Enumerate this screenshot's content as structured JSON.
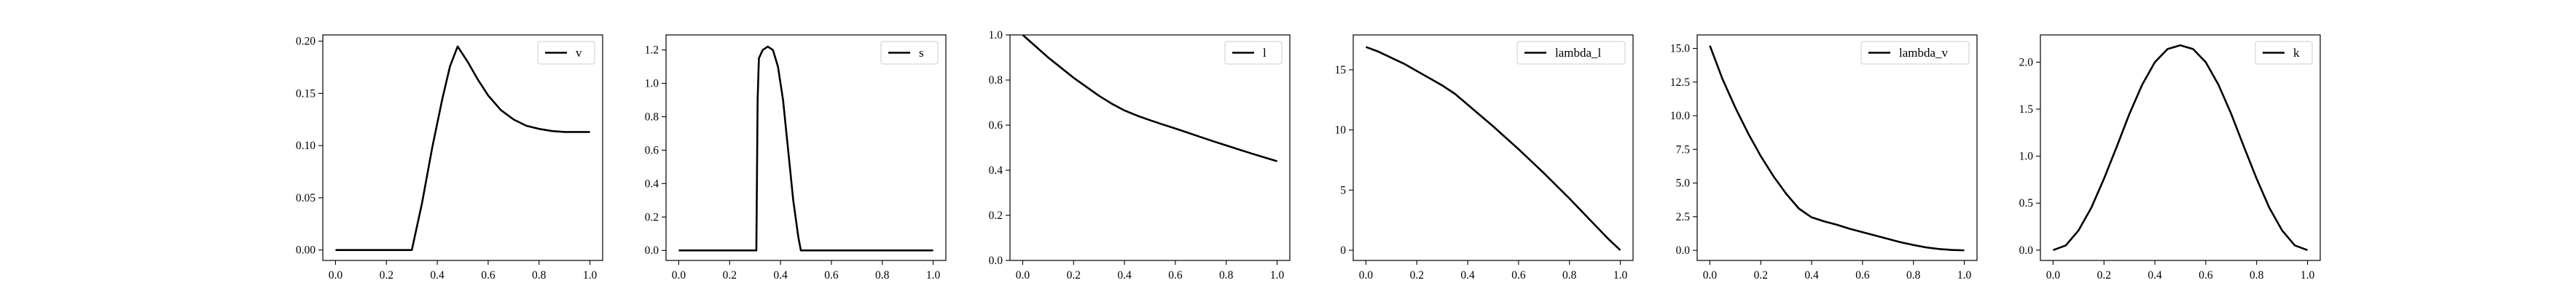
{
  "chart_data": [
    {
      "type": "line",
      "xlim": [
        -0.05,
        1.05
      ],
      "ylim": [
        -0.01,
        0.206
      ],
      "xticks": [
        "0.0",
        "0.2",
        "0.4",
        "0.6",
        "0.8",
        "1.0"
      ],
      "yticks": [
        "0.00",
        "0.05",
        "0.10",
        "0.15",
        "0.20"
      ],
      "grid": false,
      "legend": {
        "position": "top-right"
      },
      "series": [
        {
          "name": "v",
          "color": "#000000",
          "x": [
            0,
            0.1,
            0.2,
            0.3,
            0.34,
            0.38,
            0.42,
            0.45,
            0.48,
            0.52,
            0.56,
            0.6,
            0.65,
            0.7,
            0.75,
            0.8,
            0.85,
            0.9,
            0.95,
            1.0
          ],
          "y": [
            0,
            0,
            0,
            0,
            0.045,
            0.098,
            0.145,
            0.176,
            0.195,
            0.18,
            0.163,
            0.148,
            0.134,
            0.125,
            0.119,
            0.116,
            0.114,
            0.113,
            0.113,
            0.113
          ]
        }
      ]
    },
    {
      "type": "line",
      "xlim": [
        -0.05,
        1.05
      ],
      "ylim": [
        -0.06,
        1.29
      ],
      "xticks": [
        "0.0",
        "0.2",
        "0.4",
        "0.6",
        "0.8",
        "1.0"
      ],
      "yticks": [
        "0.0",
        "0.2",
        "0.4",
        "0.6",
        "0.8",
        "1.0",
        "1.2"
      ],
      "grid": false,
      "legend": {
        "position": "top-right"
      },
      "series": [
        {
          "name": "s",
          "color": "#000000",
          "x": [
            0,
            0.1,
            0.2,
            0.3,
            0.305,
            0.31,
            0.315,
            0.33,
            0.35,
            0.37,
            0.39,
            0.41,
            0.43,
            0.45,
            0.47,
            0.48,
            0.5,
            0.6,
            0.7,
            0.8,
            0.9,
            1.0
          ],
          "y": [
            0,
            0,
            0,
            0,
            0,
            0.9,
            1.15,
            1.2,
            1.22,
            1.2,
            1.1,
            0.9,
            0.6,
            0.3,
            0.08,
            0,
            0,
            0,
            0,
            0,
            0,
            0
          ]
        }
      ]
    },
    {
      "type": "line",
      "xlim": [
        -0.05,
        1.05
      ],
      "ylim": [
        0.0,
        1.0
      ],
      "xticks": [
        "0.0",
        "0.2",
        "0.4",
        "0.6",
        "0.8",
        "1.0"
      ],
      "yticks": [
        "0.0",
        "0.2",
        "0.4",
        "0.6",
        "0.8",
        "1.0"
      ],
      "grid": false,
      "legend": {
        "position": "top-right"
      },
      "series": [
        {
          "name": "l",
          "color": "#000000",
          "x": [
            0,
            0.05,
            0.1,
            0.15,
            0.2,
            0.25,
            0.3,
            0.35,
            0.4,
            0.45,
            0.5,
            0.55,
            0.6,
            0.65,
            0.7,
            0.75,
            0.8,
            0.85,
            0.9,
            0.95,
            1.0
          ],
          "y": [
            1.0,
            0.95,
            0.9,
            0.855,
            0.81,
            0.77,
            0.73,
            0.695,
            0.665,
            0.642,
            0.622,
            0.603,
            0.585,
            0.566,
            0.547,
            0.528,
            0.51,
            0.492,
            0.474,
            0.457,
            0.44
          ]
        }
      ]
    },
    {
      "type": "line",
      "xlim": [
        -0.05,
        1.05
      ],
      "ylim": [
        -0.85,
        17.9
      ],
      "xticks": [
        "0.0",
        "0.2",
        "0.4",
        "0.6",
        "0.8",
        "1.0"
      ],
      "yticks": [
        "0",
        "5",
        "10",
        "15"
      ],
      "grid": false,
      "legend": {
        "position": "top-right"
      },
      "series": [
        {
          "name": "lambda_l",
          "color": "#000000",
          "x": [
            0,
            0.05,
            0.1,
            0.15,
            0.2,
            0.25,
            0.3,
            0.35,
            0.4,
            0.45,
            0.5,
            0.55,
            0.6,
            0.65,
            0.7,
            0.75,
            0.8,
            0.85,
            0.9,
            0.95,
            1.0
          ],
          "y": [
            16.9,
            16.5,
            16.0,
            15.5,
            14.9,
            14.3,
            13.7,
            13.0,
            12.1,
            11.2,
            10.3,
            9.35,
            8.4,
            7.4,
            6.4,
            5.35,
            4.3,
            3.2,
            2.1,
            1.0,
            0.0
          ]
        }
      ]
    },
    {
      "type": "line",
      "xlim": [
        -0.05,
        1.05
      ],
      "ylim": [
        -0.75,
        16.0
      ],
      "xticks": [
        "0.0",
        "0.2",
        "0.4",
        "0.6",
        "0.8",
        "1.0"
      ],
      "yticks": [
        "0.0",
        "2.5",
        "5.0",
        "7.5",
        "10.0",
        "12.5",
        "15.0"
      ],
      "grid": false,
      "legend": {
        "position": "top-right"
      },
      "series": [
        {
          "name": "lambda_v",
          "color": "#000000",
          "x": [
            0,
            0.05,
            0.1,
            0.15,
            0.2,
            0.25,
            0.3,
            0.35,
            0.4,
            0.45,
            0.5,
            0.55,
            0.6,
            0.65,
            0.7,
            0.75,
            0.8,
            0.85,
            0.9,
            0.95,
            1.0
          ],
          "y": [
            15.2,
            12.7,
            10.6,
            8.7,
            7.0,
            5.5,
            4.2,
            3.1,
            2.45,
            2.15,
            1.9,
            1.6,
            1.35,
            1.1,
            0.85,
            0.6,
            0.4,
            0.22,
            0.1,
            0.03,
            0.0
          ]
        }
      ]
    },
    {
      "type": "line",
      "xlim": [
        -0.05,
        1.05
      ],
      "ylim": [
        -0.11,
        2.29
      ],
      "xticks": [
        "0.0",
        "0.2",
        "0.4",
        "0.6",
        "0.8",
        "1.0"
      ],
      "yticks": [
        "0.0",
        "0.5",
        "1.0",
        "1.5",
        "2.0"
      ],
      "grid": false,
      "legend": {
        "position": "top-right"
      },
      "series": [
        {
          "name": "k",
          "color": "#000000",
          "x": [
            0,
            0.05,
            0.1,
            0.15,
            0.2,
            0.25,
            0.3,
            0.35,
            0.4,
            0.45,
            0.5,
            0.55,
            0.6,
            0.65,
            0.7,
            0.75,
            0.8,
            0.85,
            0.9,
            0.95,
            1.0
          ],
          "y": [
            0.0,
            0.05,
            0.21,
            0.45,
            0.76,
            1.1,
            1.45,
            1.76,
            2.0,
            2.14,
            2.18,
            2.14,
            2.0,
            1.76,
            1.45,
            1.1,
            0.76,
            0.45,
            0.21,
            0.05,
            0.0
          ]
        }
      ]
    }
  ]
}
